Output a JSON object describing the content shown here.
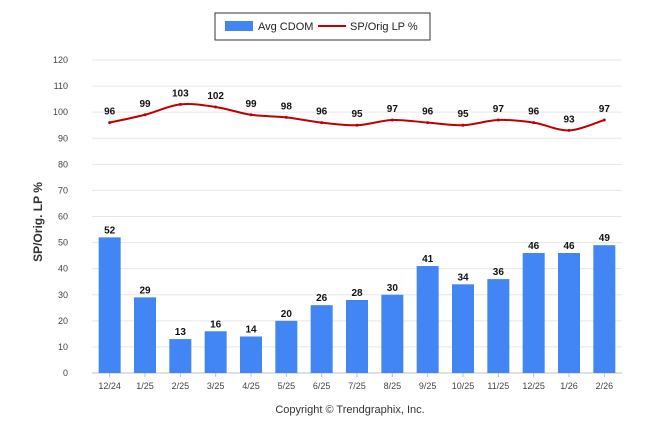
{
  "chart_data": {
    "type": "bar",
    "title": "",
    "xlabel": "",
    "ylabel": "SP/Orig. LP %",
    "ylim": [
      0,
      120
    ],
    "yticks": [
      0,
      10,
      20,
      30,
      40,
      50,
      60,
      70,
      80,
      90,
      100,
      110,
      120
    ],
    "grid": true,
    "legend_position": "top-center",
    "categories": [
      "12/24",
      "1/25",
      "2/25",
      "3/25",
      "4/25",
      "5/25",
      "6/25",
      "7/25",
      "8/25",
      "9/25",
      "10/25",
      "11/25",
      "12/25",
      "1/26",
      "2/26"
    ],
    "series": [
      {
        "name": "Avg CDOM",
        "type": "bar",
        "color": "#4285f4",
        "values": [
          52,
          29,
          13,
          16,
          14,
          20,
          26,
          28,
          30,
          41,
          34,
          36,
          46,
          46,
          49
        ]
      },
      {
        "name": "SP/Orig LP %",
        "type": "line",
        "color": "#c00000",
        "values": [
          96,
          99,
          103,
          102,
          99,
          98,
          96,
          95,
          97,
          96,
          95,
          97,
          96,
          93,
          97
        ]
      }
    ]
  },
  "footer": {
    "copyright": "Copyright © Trendgraphix, Inc."
  }
}
